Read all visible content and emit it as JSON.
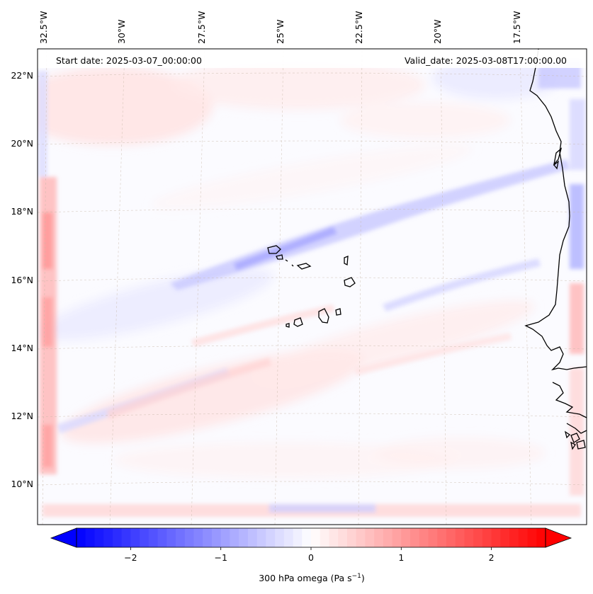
{
  "header": {
    "start_date": "Start date: 2025-03-07_00:00:00",
    "valid_date": "Valid_date: 2025-03-08T17:00:00.00"
  },
  "map": {
    "longitude_labels": [
      "32.5°W",
      "30°W",
      "27.5°W",
      "25°W",
      "22.5°W",
      "20°W",
      "17.5°W"
    ],
    "latitude_labels": [
      "22°N",
      "20°N",
      "18°N",
      "16°N",
      "14°N",
      "12°N",
      "10°N"
    ],
    "variable": "300 hPa omega",
    "extent": {
      "lon_min": -32.6,
      "lon_max": -16.4,
      "lat_min": 8.9,
      "lat_max": 22.7
    }
  },
  "colorbar": {
    "label_main": "300 hPa omega (Pa s",
    "label_exp": "−1",
    "label_close": ")",
    "tick_labels": [
      "−2",
      "−1",
      "0",
      "1",
      "2"
    ],
    "range": [
      -2.6,
      2.6
    ],
    "colors": {
      "negative": "#0000ff",
      "neutral": "#ffffff",
      "positive": "#ff0000"
    }
  }
}
